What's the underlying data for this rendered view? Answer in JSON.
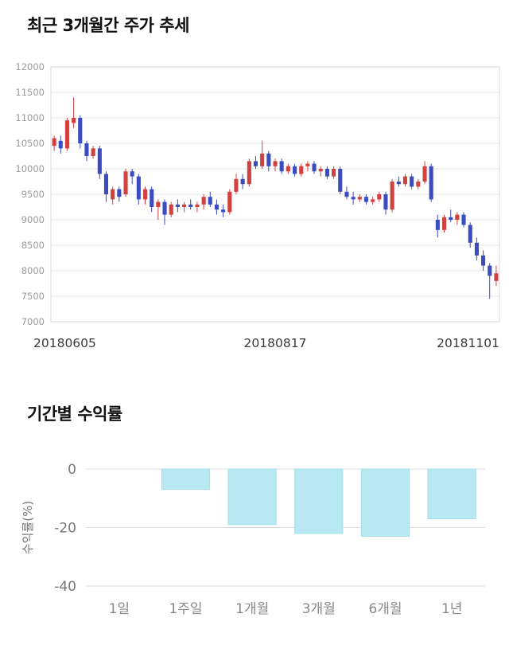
{
  "price_section": {
    "title": "최근 3개월간 주가 추세"
  },
  "returns_section": {
    "title": "기간별 수익률"
  },
  "chart_data": [
    {
      "type": "candlestick",
      "title": "최근 3개월간 주가 추세",
      "ylim": [
        7000,
        12000
      ],
      "yticks": [
        12000,
        11500,
        11000,
        10500,
        10000,
        9500,
        9000,
        8500,
        8000,
        7500,
        7000
      ],
      "xtick_labels": [
        "20180605",
        "20180817",
        "20181101"
      ],
      "up_color": "#d24040",
      "down_color": "#3b4cc0",
      "grid_color": "#e4e4e4",
      "border_color": "#d8d8d8",
      "candles": [
        [
          10450,
          10650,
          10350,
          10600
        ],
        [
          10550,
          10650,
          10300,
          10400
        ],
        [
          10400,
          11000,
          10350,
          10950
        ],
        [
          10900,
          11400,
          10800,
          11000
        ],
        [
          11000,
          11050,
          10400,
          10500
        ],
        [
          10500,
          10550,
          10150,
          10250
        ],
        [
          10250,
          10450,
          10200,
          10400
        ],
        [
          10400,
          10450,
          9800,
          9900
        ],
        [
          9900,
          9950,
          9350,
          9500
        ],
        [
          9400,
          9650,
          9300,
          9600
        ],
        [
          9600,
          9650,
          9350,
          9450
        ],
        [
          9500,
          10000,
          9450,
          9950
        ],
        [
          9950,
          10000,
          9700,
          9850
        ],
        [
          9850,
          9900,
          9300,
          9400
        ],
        [
          9400,
          9650,
          9300,
          9600
        ],
        [
          9600,
          9650,
          9150,
          9250
        ],
        [
          9250,
          9400,
          9000,
          9350
        ],
        [
          9350,
          9400,
          8900,
          9100
        ],
        [
          9100,
          9350,
          9050,
          9300
        ],
        [
          9300,
          9400,
          9150,
          9250
        ],
        [
          9250,
          9350,
          9150,
          9300
        ],
        [
          9300,
          9400,
          9200,
          9250
        ],
        [
          9250,
          9350,
          9150,
          9300
        ],
        [
          9300,
          9500,
          9200,
          9450
        ],
        [
          9450,
          9550,
          9250,
          9300
        ],
        [
          9300,
          9400,
          9100,
          9200
        ],
        [
          9200,
          9300,
          9050,
          9150
        ],
        [
          9150,
          9600,
          9100,
          9550
        ],
        [
          9550,
          9900,
          9500,
          9800
        ],
        [
          9800,
          9900,
          9600,
          9700
        ],
        [
          9700,
          10200,
          9650,
          10150
        ],
        [
          10150,
          10250,
          10000,
          10050
        ],
        [
          10050,
          10550,
          10000,
          10300
        ],
        [
          10300,
          10350,
          9950,
          10050
        ],
        [
          10050,
          10200,
          9950,
          10150
        ],
        [
          10150,
          10200,
          9900,
          9950
        ],
        [
          9950,
          10100,
          9900,
          10050
        ],
        [
          10050,
          10100,
          9850,
          9900
        ],
        [
          9900,
          10100,
          9850,
          10050
        ],
        [
          10050,
          10150,
          9950,
          10100
        ],
        [
          10100,
          10150,
          9900,
          9950
        ],
        [
          9950,
          10050,
          9850,
          10000
        ],
        [
          10000,
          10050,
          9800,
          9850
        ],
        [
          9850,
          10050,
          9800,
          10000
        ],
        [
          10000,
          10050,
          9500,
          9550
        ],
        [
          9550,
          9650,
          9400,
          9450
        ],
        [
          9450,
          9550,
          9300,
          9400
        ],
        [
          9400,
          9500,
          9350,
          9450
        ],
        [
          9450,
          9500,
          9300,
          9350
        ],
        [
          9350,
          9450,
          9300,
          9400
        ],
        [
          9400,
          9550,
          9350,
          9500
        ],
        [
          9500,
          9550,
          9100,
          9200
        ],
        [
          9200,
          9800,
          9150,
          9750
        ],
        [
          9750,
          9850,
          9650,
          9700
        ],
        [
          9700,
          9900,
          9650,
          9850
        ],
        [
          9850,
          9900,
          9600,
          9650
        ],
        [
          9650,
          9800,
          9600,
          9750
        ],
        [
          9750,
          10150,
          9700,
          10050
        ],
        [
          10050,
          10100,
          9350,
          9400
        ],
        [
          9000,
          9100,
          8650,
          8800
        ],
        [
          8800,
          9100,
          8750,
          9050
        ],
        [
          9050,
          9200,
          8950,
          9000
        ],
        [
          9000,
          9150,
          8900,
          9100
        ],
        [
          9100,
          9150,
          8850,
          8900
        ],
        [
          8900,
          8950,
          8450,
          8550
        ],
        [
          8550,
          8650,
          8200,
          8300
        ],
        [
          8300,
          8400,
          8000,
          8100
        ],
        [
          8100,
          8150,
          7450,
          7900
        ],
        [
          7800,
          8100,
          7700,
          7950
        ]
      ]
    },
    {
      "type": "bar",
      "title": "기간별 수익률",
      "categories": [
        "1일",
        "1주일",
        "1개월",
        "3개월",
        "6개월",
        "1년"
      ],
      "values": [
        0,
        -7,
        -19,
        -22,
        -23,
        -17
      ],
      "ylabel": "수익률(%)",
      "ylim": [
        -40,
        0
      ],
      "yticks": [
        0,
        -20,
        -40
      ],
      "bar_color": "#b8e9f2",
      "bar_edge_color": "#a3dfeb",
      "grid_color": "#dedede",
      "tick_text_color": "#777777",
      "category_text_color": "#888888"
    }
  ]
}
